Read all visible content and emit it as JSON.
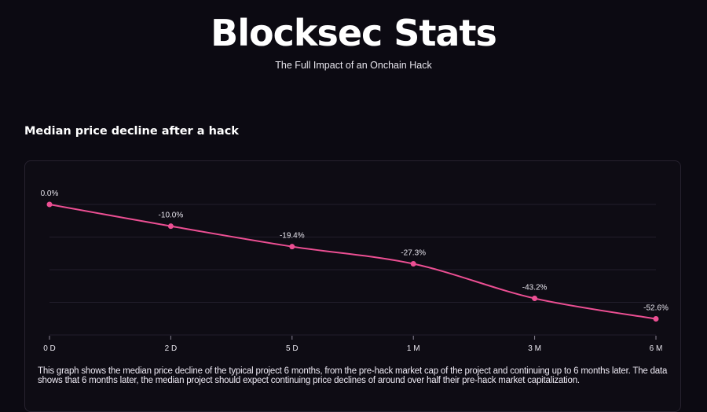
{
  "header": {
    "title": "Blocksec Stats",
    "subtitle": "The Full Impact of an Onchain Hack"
  },
  "section_title": "Median price decline after a hack",
  "chart_data": {
    "type": "line",
    "title": "Median price decline after a hack",
    "categories": [
      "0 D",
      "2 D",
      "5 D",
      "1 M",
      "3 M",
      "6 M"
    ],
    "values": [
      0.0,
      -10.0,
      -19.4,
      -27.3,
      -43.2,
      -52.6
    ],
    "data_labels": [
      "0.0%",
      "-10.0%",
      "-19.4%",
      "-27.3%",
      "-43.2%",
      "-52.6%"
    ],
    "ylim": [
      -60,
      0
    ],
    "yticks": [
      0,
      -15,
      -30,
      -45,
      -60
    ],
    "grid": true,
    "xlabel": "",
    "ylabel": "",
    "line_color": "#ec4f93"
  },
  "description": "This graph shows the median price decline of the typical project 6 months, from the pre-hack market cap of the project and continuing up to 6 months later. The data shows that 6 months later, the median project should expect continuing price declines of around over half their pre-hack market capitalization."
}
